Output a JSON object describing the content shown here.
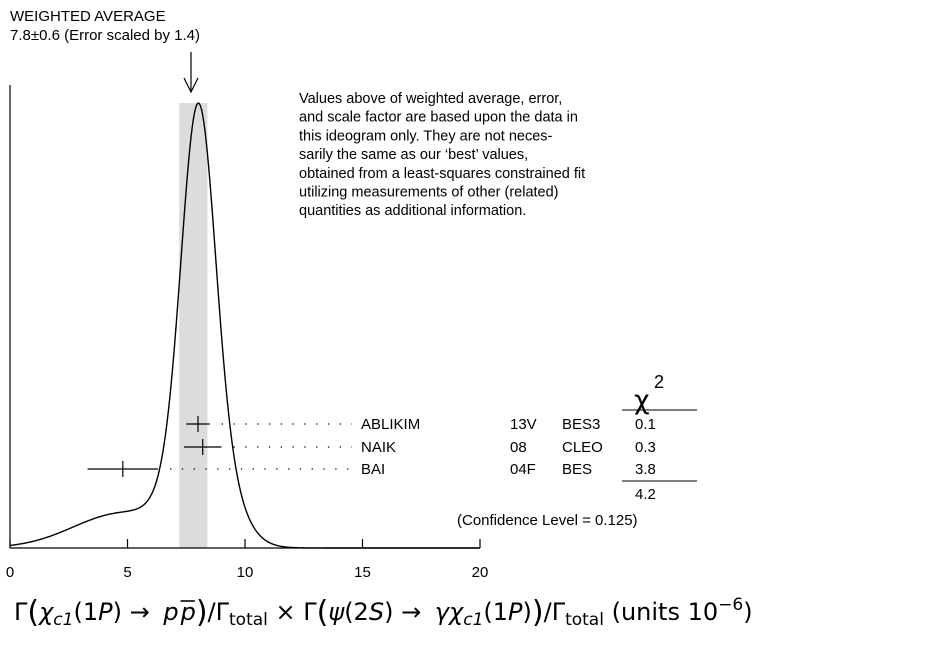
{
  "chart_data": {
    "type": "ideogram",
    "title_line1": "WEIGHTED AVERAGE",
    "title_line2": "7.8±0.6 (Error scaled by 1.4)",
    "weighted_average": 7.8,
    "error": 0.6,
    "scale_factor": 1.4,
    "note_lines": [
      "Values above of weighted average, error,",
      "and scale factor are based upon the data in",
      "this ideogram only.  They are not neces-",
      "sarily the same as our ‘best’ values,",
      "obtained from a least-squares constrained fit",
      "utilizing measurements of other (related)",
      "quantities as additional information."
    ],
    "xlim": [
      0,
      20
    ],
    "x_ticks": [
      0,
      5,
      10,
      15,
      20
    ],
    "x_tick_labels": [
      "0",
      "5",
      "10",
      "15",
      "20"
    ],
    "chi2_header": "χ",
    "chi2_superscript": "2",
    "measurements": [
      {
        "author": "ABLIKIM",
        "year": "13V",
        "experiment": "BES3",
        "value": 8.0,
        "error": 0.5,
        "chi2": "0.1"
      },
      {
        "author": "NAIK",
        "year": "08",
        "experiment": "CLEO",
        "value": 8.2,
        "error": 0.8,
        "chi2": "0.3"
      },
      {
        "author": "BAI",
        "year": "04F",
        "experiment": "BES",
        "value": 4.8,
        "error": 1.5,
        "chi2": "3.8"
      }
    ],
    "chi2_total": "4.2",
    "confidence_level": "(Confidence Level = 0.125)",
    "xlabel_parts": {
      "gamma": "Γ",
      "chi": "χ",
      "c1": "c1",
      "onep": "(1",
      "P": "P",
      "close": ")",
      "arrow": " → ",
      "p": "p",
      "pbar": "p",
      "slash_gamma": "/Γ",
      "total": "total",
      "times": " × ",
      "psi": "ψ",
      "twoS": "(2",
      "S": "S",
      "gammaphoton": "γ",
      "units": " (units 10",
      "exponent": "−6",
      "units_close": ")"
    },
    "colors": {
      "band": "#dcdcdc",
      "ink": "#000000"
    }
  }
}
